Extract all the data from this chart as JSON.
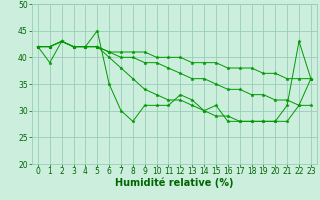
{
  "background_color": "#cceedd",
  "grid_color": "#99ccbb",
  "line_color": "#009900",
  "marker": "*",
  "xlabel": "Humidité relative (%)",
  "xlabel_color": "#006600",
  "xlabel_fontsize": 7,
  "tick_color": "#006600",
  "tick_fontsize": 5.5,
  "ylim": [
    20,
    50
  ],
  "xlim": [
    -0.5,
    23.5
  ],
  "yticks": [
    20,
    25,
    30,
    35,
    40,
    45,
    50
  ],
  "xticks": [
    0,
    1,
    2,
    3,
    4,
    5,
    6,
    7,
    8,
    9,
    10,
    11,
    12,
    13,
    14,
    15,
    16,
    17,
    18,
    19,
    20,
    21,
    22,
    23
  ],
  "series": [
    [
      42,
      39,
      43,
      42,
      42,
      45,
      35,
      30,
      28,
      31,
      31,
      31,
      33,
      32,
      30,
      31,
      28,
      28,
      28,
      28,
      28,
      31,
      43,
      36
    ],
    [
      42,
      42,
      43,
      42,
      42,
      42,
      41,
      41,
      41,
      41,
      40,
      40,
      40,
      39,
      39,
      39,
      38,
      38,
      38,
      37,
      37,
      36,
      36,
      36
    ],
    [
      42,
      42,
      43,
      42,
      42,
      42,
      41,
      40,
      40,
      39,
      39,
      38,
      37,
      36,
      36,
      35,
      34,
      34,
      33,
      33,
      32,
      32,
      31,
      31
    ],
    [
      42,
      42,
      43,
      42,
      42,
      42,
      40,
      38,
      36,
      34,
      33,
      32,
      32,
      31,
      30,
      29,
      29,
      28,
      28,
      28,
      28,
      28,
      31,
      36
    ]
  ]
}
